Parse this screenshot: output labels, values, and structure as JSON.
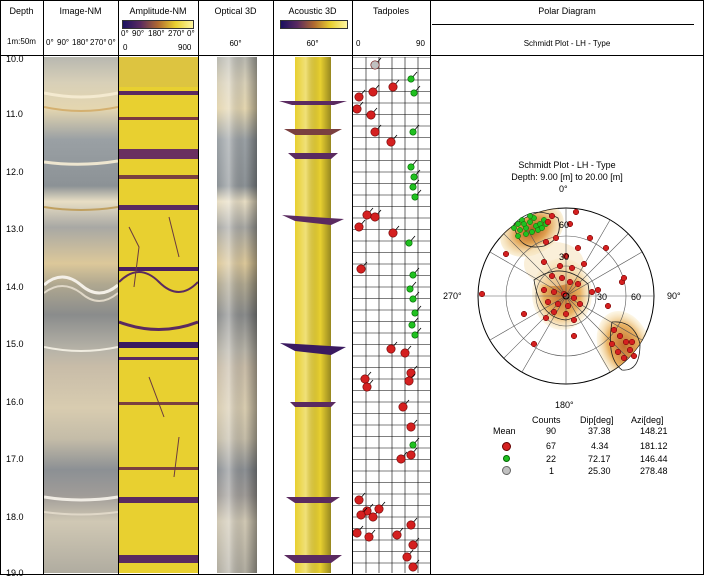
{
  "header": {
    "depth": "Depth",
    "scale": "1m:50m",
    "image_nm": "Image-NM",
    "image_nm_scale": [
      "0°",
      "90°",
      "180°",
      "270°",
      "0°"
    ],
    "amplitude_nm": "Amplitude-NM",
    "amplitude_scale_top": [
      "0°",
      "90°",
      "180°",
      "270°",
      "0°"
    ],
    "amplitude_scale_min": "0",
    "amplitude_scale_max": "900",
    "optical_3d": "Optical 3D",
    "optical_angle": "60°",
    "acoustic_3d": "Acoustic 3D",
    "acoustic_angle": "60°",
    "tadpoles": "Tadpoles",
    "tadpoles_min": "0",
    "tadpoles_max": "90",
    "polar_diagram": "Polar Diagram",
    "polar_subtitle": "Schmidt Plot - LH - Type"
  },
  "depth_labels": [
    "10.0",
    "11.0",
    "12.0",
    "13.0",
    "14.0",
    "15.0",
    "16.0",
    "17.0",
    "18.0",
    "19.0"
  ],
  "polar": {
    "title": "Schmidt Plot - LH - Type",
    "depth_range": "Depth: 9.00 [m] to 20.00 [m]",
    "north": "0°",
    "south": "180°",
    "west": "270°",
    "east": "90°",
    "ring_labels": [
      "60",
      "30",
      "30",
      "60"
    ]
  },
  "stats": {
    "headers": [
      "Counts",
      "Dip[deg]",
      "Azi[deg]"
    ],
    "rows": [
      {
        "label": "Mean",
        "color": "",
        "counts": "90",
        "dip": "37.38",
        "azi": "148.21"
      },
      {
        "label": "",
        "color": "#d42020",
        "counts": "67",
        "dip": "4.34",
        "azi": "181.12"
      },
      {
        "label": "",
        "color": "#20c020",
        "counts": "22",
        "dip": "72.17",
        "azi": "146.44"
      },
      {
        "label": "",
        "color": "#c0c0c0",
        "counts": "1",
        "dip": "25.30",
        "azi": "278.48"
      }
    ]
  },
  "colors": {
    "amplitude_yellow": "#e8d030",
    "amplitude_dark": "#5a2a60",
    "tadpole_red": "#d42020",
    "tadpole_green": "#20c020"
  }
}
